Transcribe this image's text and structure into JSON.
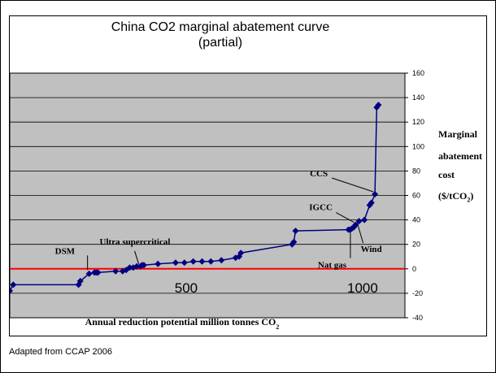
{
  "source_note": "Adapted from CCAP 2006",
  "chart_data": {
    "type": "line",
    "title_lines": [
      "China CO2 marginal abatement curve",
      "(partial)"
    ],
    "xlabel": "Annual reduction potential million tonnes CO",
    "xlabel_sub": "2",
    "ylabel_lines": [
      "Marginal",
      "abatement",
      "cost"
    ],
    "ylabel_unit_pre": "($/tCO",
    "ylabel_unit_sub": "2",
    "ylabel_unit_post": ")",
    "xlim": [
      0,
      1120
    ],
    "ylim": [
      -40,
      160
    ],
    "y_ticks": [
      -40,
      -20,
      0,
      20,
      40,
      60,
      80,
      100,
      120,
      140,
      160
    ],
    "x_ticks": [
      500,
      1000
    ],
    "grid": true,
    "plot_background": "#c0c0c0",
    "series_color": "#000080",
    "zero_line_color": "#ff0000",
    "series": [
      {
        "x": [
          0,
          10,
          195,
          200,
          225,
          240,
          245,
          250,
          300,
          320,
          330,
          340,
          350,
          360,
          370,
          375,
          380,
          420,
          470,
          495,
          520,
          545,
          570,
          600,
          640,
          650,
          655,
          800,
          805,
          810,
          960,
          965,
          970,
          975,
          980,
          990,
          1005,
          1020,
          1025,
          1035,
          1040,
          1045
        ],
        "y": [
          -18,
          -13,
          -13,
          -10,
          -4,
          -3,
          -3,
          -3,
          -2,
          -2,
          -1,
          1,
          1,
          2,
          2,
          3,
          3,
          4,
          5,
          5,
          6,
          6,
          6,
          7,
          9,
          10,
          13,
          20,
          22,
          31,
          32,
          32,
          33,
          34,
          36,
          39,
          40,
          52,
          54,
          61,
          132,
          134
        ]
      }
    ],
    "annotations": [
      {
        "label": "DSM",
        "x": 225,
        "y": -3
      },
      {
        "label": "Ultra supercritical",
        "x": 370,
        "y": 2
      },
      {
        "label": "CCS",
        "x": 1035,
        "y": 61
      },
      {
        "label": "IGCC",
        "x": 980,
        "y": 36
      },
      {
        "label": "Wind",
        "x": 990,
        "y": 39
      },
      {
        "label": "Nat gas",
        "x": 970,
        "y": 32
      }
    ]
  }
}
